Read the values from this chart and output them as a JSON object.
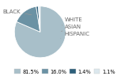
{
  "labels": [
    "BLACK",
    "WHITE",
    "ASIAN",
    "HISPANIC"
  ],
  "values": [
    81.5,
    16.0,
    1.4,
    1.1
  ],
  "colors": [
    "#a8bfc9",
    "#6b92a4",
    "#2e5f7a",
    "#dce8ee"
  ],
  "legend_labels": [
    "81.5%",
    "16.0%",
    "1.4%",
    "1.1%"
  ],
  "startangle": 90,
  "bg_color": "#ffffff",
  "label_color": "#666666",
  "line_color": "#999999",
  "label_fontsize": 5.0
}
